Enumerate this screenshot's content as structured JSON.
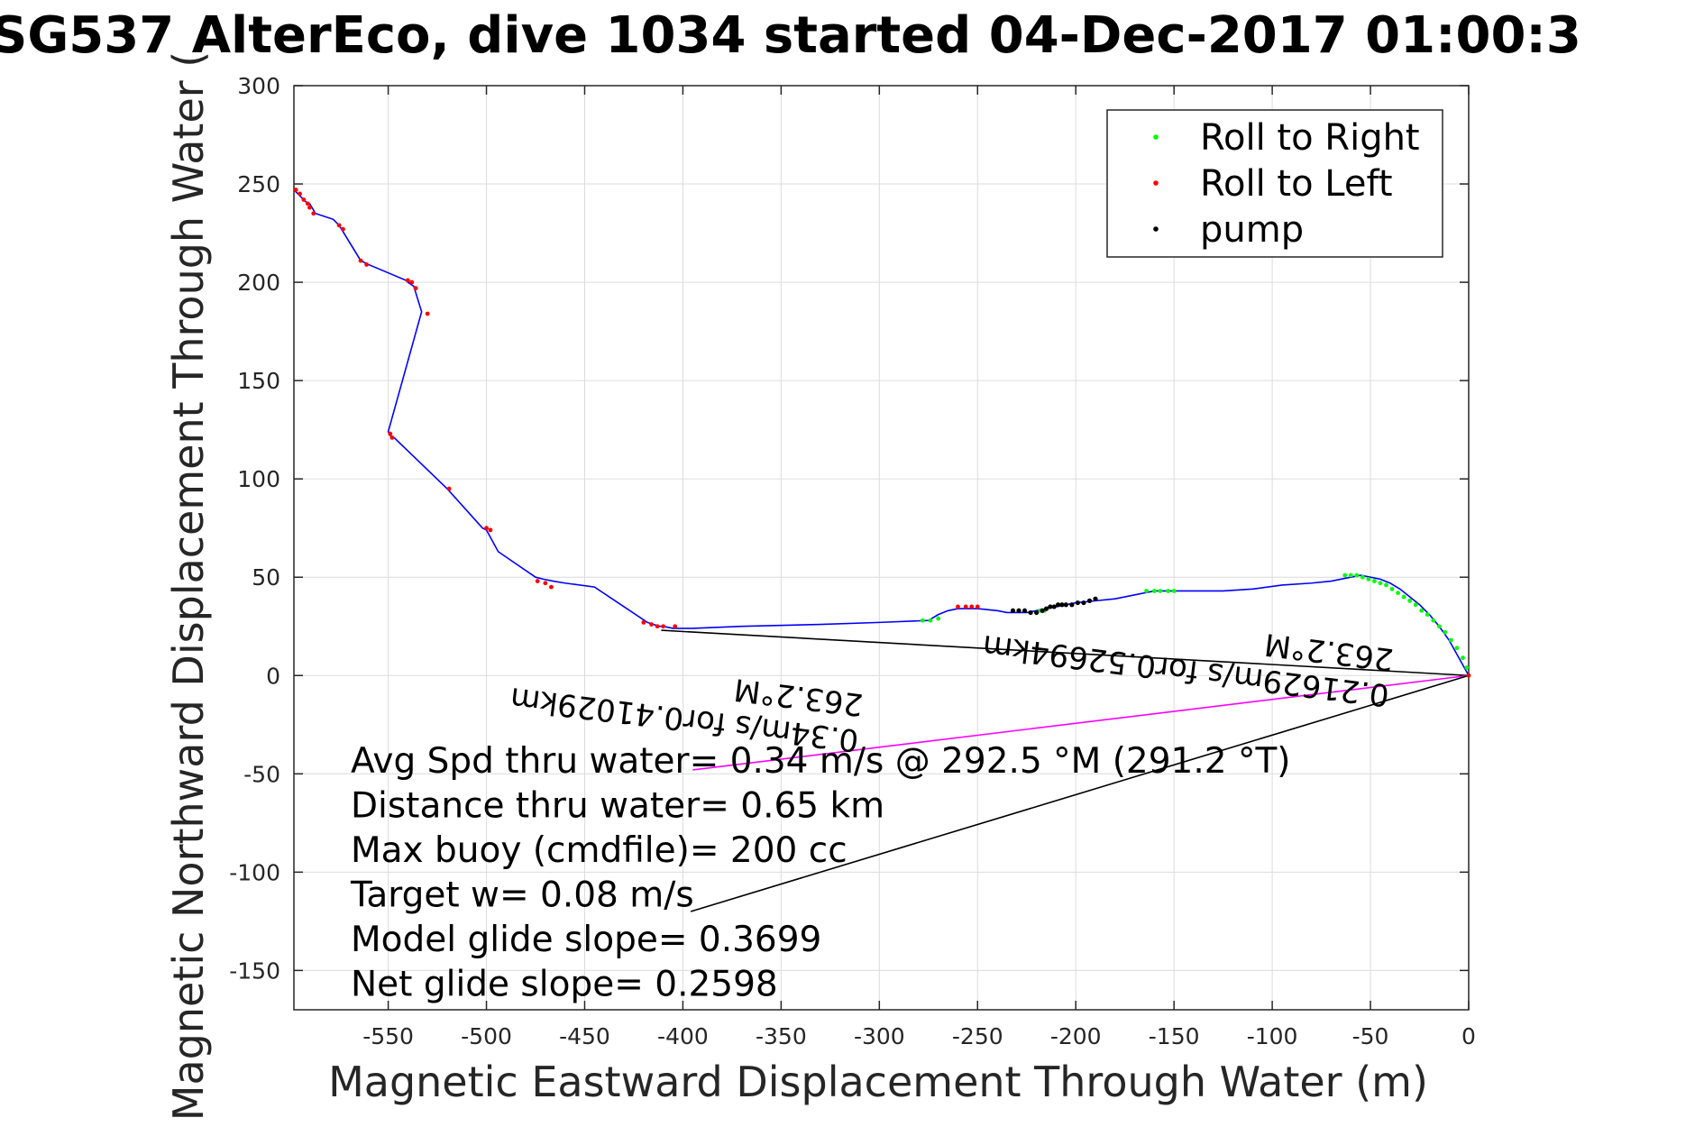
{
  "chart_data": {
    "type": "line",
    "title": "SG537 AlterEco, dive 1034 started 04-Dec-2017 01:00:3",
    "xlabel": "Magnetic Eastward Displacement Through Water (m)",
    "ylabel": "Magnetic Northward Displacement Through Water (",
    "xlim": [
      -598,
      0
    ],
    "ylim": [
      -170,
      300
    ],
    "xticks": [
      -550,
      -500,
      -450,
      -400,
      -350,
      -300,
      -250,
      -200,
      -150,
      -100,
      -50,
      0
    ],
    "yticks": [
      300,
      250,
      200,
      150,
      100,
      50,
      0,
      -50,
      -100,
      -150
    ],
    "grid": true,
    "legend_position": "top-right",
    "legend": [
      {
        "label": "Roll to Right",
        "color": "#00ff00"
      },
      {
        "label": "Roll to Left",
        "color": "#ff0000"
      },
      {
        "label": "pump",
        "color": "#000000"
      }
    ],
    "track": {
      "name": "",
      "color": "#0000ff",
      "x": [
        0,
        -5,
        -10,
        -15,
        -20,
        -25,
        -30,
        -35,
        -40,
        -45,
        -50,
        -55,
        -60,
        -70,
        -80,
        -95,
        -110,
        -125,
        -135,
        -150,
        -160,
        -170,
        -180,
        -190,
        -200,
        -205,
        -210,
        -215,
        -220,
        -225,
        -230,
        -235,
        -240,
        -250,
        -255,
        -260,
        -265,
        -270,
        -275,
        -300,
        -330,
        -370,
        -395,
        -405,
        -410,
        -412,
        -415,
        -418,
        -433,
        -445,
        -460,
        -466,
        -471,
        -475,
        -494,
        -500,
        -502,
        -520,
        -547,
        -549,
        -550,
        -533,
        -537,
        -540,
        -541,
        -560,
        -564,
        -575,
        -578,
        -587,
        -590,
        -592,
        -594,
        -598
      ],
      "y": [
        0,
        9,
        18,
        25,
        31,
        36,
        40,
        44,
        47,
        49,
        50,
        51,
        50,
        48,
        47,
        46,
        44,
        43,
        43,
        43,
        43,
        41,
        39,
        38,
        37,
        36,
        35,
        34,
        33,
        32,
        32,
        32,
        33,
        34,
        34,
        34,
        33,
        31,
        28,
        27,
        26,
        25,
        24,
        24,
        25,
        25,
        26,
        27,
        37,
        45,
        47,
        48,
        49,
        50,
        63,
        74,
        75,
        95,
        121,
        122,
        124,
        185,
        198,
        200,
        201,
        209,
        211,
        229,
        232,
        235,
        240,
        241,
        243,
        247
      ]
    },
    "roll_right": {
      "x": [
        -1,
        -3,
        -6,
        -9,
        -12,
        -15,
        -18,
        -21,
        -24,
        -27,
        -30,
        -33,
        -36,
        -39,
        -42,
        -45,
        -48,
        -51,
        -54,
        -57,
        -60,
        -63,
        -150,
        -153,
        -157,
        -160,
        -164,
        -216,
        -218,
        -220,
        -270,
        -274,
        -278
      ],
      "y": [
        4,
        9,
        14,
        18,
        22,
        25,
        28,
        31,
        33,
        36,
        38,
        40,
        42,
        44,
        46,
        47,
        48,
        49,
        50,
        51,
        51,
        51,
        43,
        43,
        43,
        43,
        43,
        33,
        33,
        32,
        29,
        28,
        28
      ]
    },
    "roll_left": {
      "x": [
        0,
        -250,
        -253,
        -256,
        -260,
        -404,
        -410,
        -413,
        -416,
        -420,
        -467,
        -470,
        -474,
        -498,
        -500,
        -519,
        -548,
        -549,
        -530,
        -536,
        -538,
        -540,
        -561,
        -564,
        -573,
        -575,
        -588,
        -590,
        -591,
        -593,
        -595,
        -597
      ],
      "y": [
        0,
        35,
        35,
        35,
        35,
        25,
        25,
        25,
        26,
        27,
        45,
        47,
        48,
        74,
        75,
        95,
        121,
        123,
        184,
        197,
        200,
        201,
        209,
        211,
        227,
        229,
        235,
        238,
        240,
        242,
        245,
        247
      ]
    },
    "pump": {
      "x": [
        -190,
        -193,
        -196,
        -199,
        -202,
        -205,
        -207,
        -209,
        -211,
        -213,
        -215,
        -217,
        -220,
        -223,
        -226,
        -229,
        -232
      ],
      "y": [
        39,
        38,
        37,
        37,
        36,
        36,
        36,
        36,
        35,
        35,
        34,
        33,
        32,
        32,
        33,
        33,
        33
      ]
    },
    "vectors": [
      {
        "x": [
          0,
          -411
        ],
        "y": [
          0,
          23
        ],
        "color": "#000000"
      },
      {
        "x": [
          0,
          -395
        ],
        "y": [
          0,
          -48
        ],
        "color": "#ff00ff"
      },
      {
        "x": [
          0,
          -396
        ],
        "y": [
          0,
          -120
        ],
        "color": "#000000"
      }
    ],
    "vector_labels": [
      {
        "lines": [
          "0.21629m/s for0.52694km",
          "263.2°M"
        ],
        "anchor_x": -40,
        "anchor_y": -5,
        "rotate": 187
      },
      {
        "lines": [
          "0.34m/s for0.41029km",
          "263.2°M"
        ],
        "anchor_x": -310,
        "anchor_y": -28,
        "rotate": 187
      }
    ],
    "annotations": [
      "Avg Spd thru water= 0.34 m/s @ 292.5 °M (291.2 °T)",
      "Distance thru water=  0.65 km",
      "Max buoy (cmdfile)= 200 cc",
      "Target w= 0.08 m/s",
      "Model glide slope= 0.3699",
      "Net glide slope= 0.2598"
    ]
  }
}
